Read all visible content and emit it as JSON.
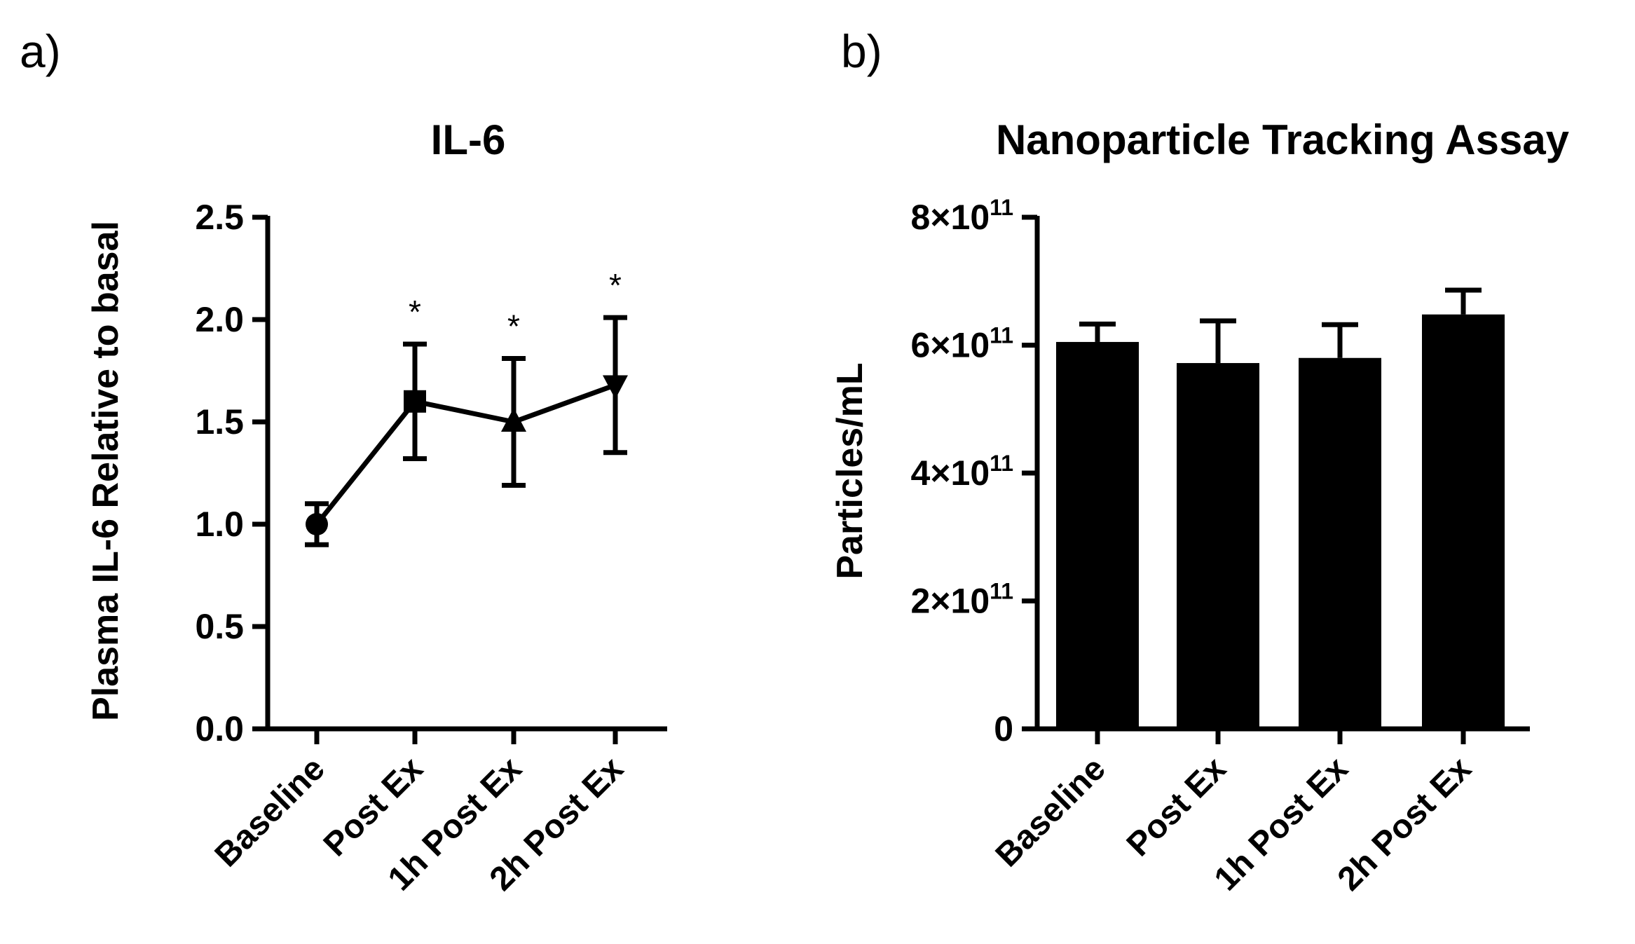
{
  "chart_data": [
    {
      "panel": "a)",
      "type": "line",
      "title": "IL-6",
      "ylabel": "Plasma IL-6 Relative to basal",
      "xlabel": "",
      "categories": [
        "Baseline",
        "Post Ex",
        "1h Post Ex",
        "2h Post Ex"
      ],
      "values": [
        1.0,
        1.6,
        1.5,
        1.68
      ],
      "error": [
        0.1,
        0.28,
        0.31,
        0.33
      ],
      "markers": [
        "circle",
        "square",
        "triangle-up",
        "triangle-down"
      ],
      "significance": [
        "",
        "*",
        "*",
        "*"
      ],
      "ylim": [
        0,
        2.5
      ],
      "yticks": [
        "0.0",
        "0.5",
        "1.0",
        "1.5",
        "2.0",
        "2.5"
      ],
      "ytick_values": [
        0,
        0.5,
        1.0,
        1.5,
        2.0,
        2.5
      ],
      "grid": false
    },
    {
      "panel": "b)",
      "type": "bar",
      "title": "Nanoparticle Tracking Assay",
      "ylabel": "Particles/mL",
      "xlabel": "",
      "categories": [
        "Baseline",
        "Post Ex",
        "1h Post Ex",
        "2h Post Ex"
      ],
      "values": [
        605000000000,
        572000000000,
        580000000000,
        648000000000
      ],
      "error": [
        28000000000,
        66000000000,
        52000000000,
        38000000000
      ],
      "ylim": [
        0,
        800000000000
      ],
      "ytick_values": [
        0,
        200000000000,
        400000000000,
        600000000000,
        800000000000
      ],
      "yticks": [
        {
          "mantissa": "0",
          "exponent": ""
        },
        {
          "mantissa": "2×10",
          "exponent": "11"
        },
        {
          "mantissa": "4×10",
          "exponent": "11"
        },
        {
          "mantissa": "6×10",
          "exponent": "11"
        },
        {
          "mantissa": "8×10",
          "exponent": "11"
        }
      ],
      "bar_color": "#000000",
      "grid": false
    }
  ]
}
